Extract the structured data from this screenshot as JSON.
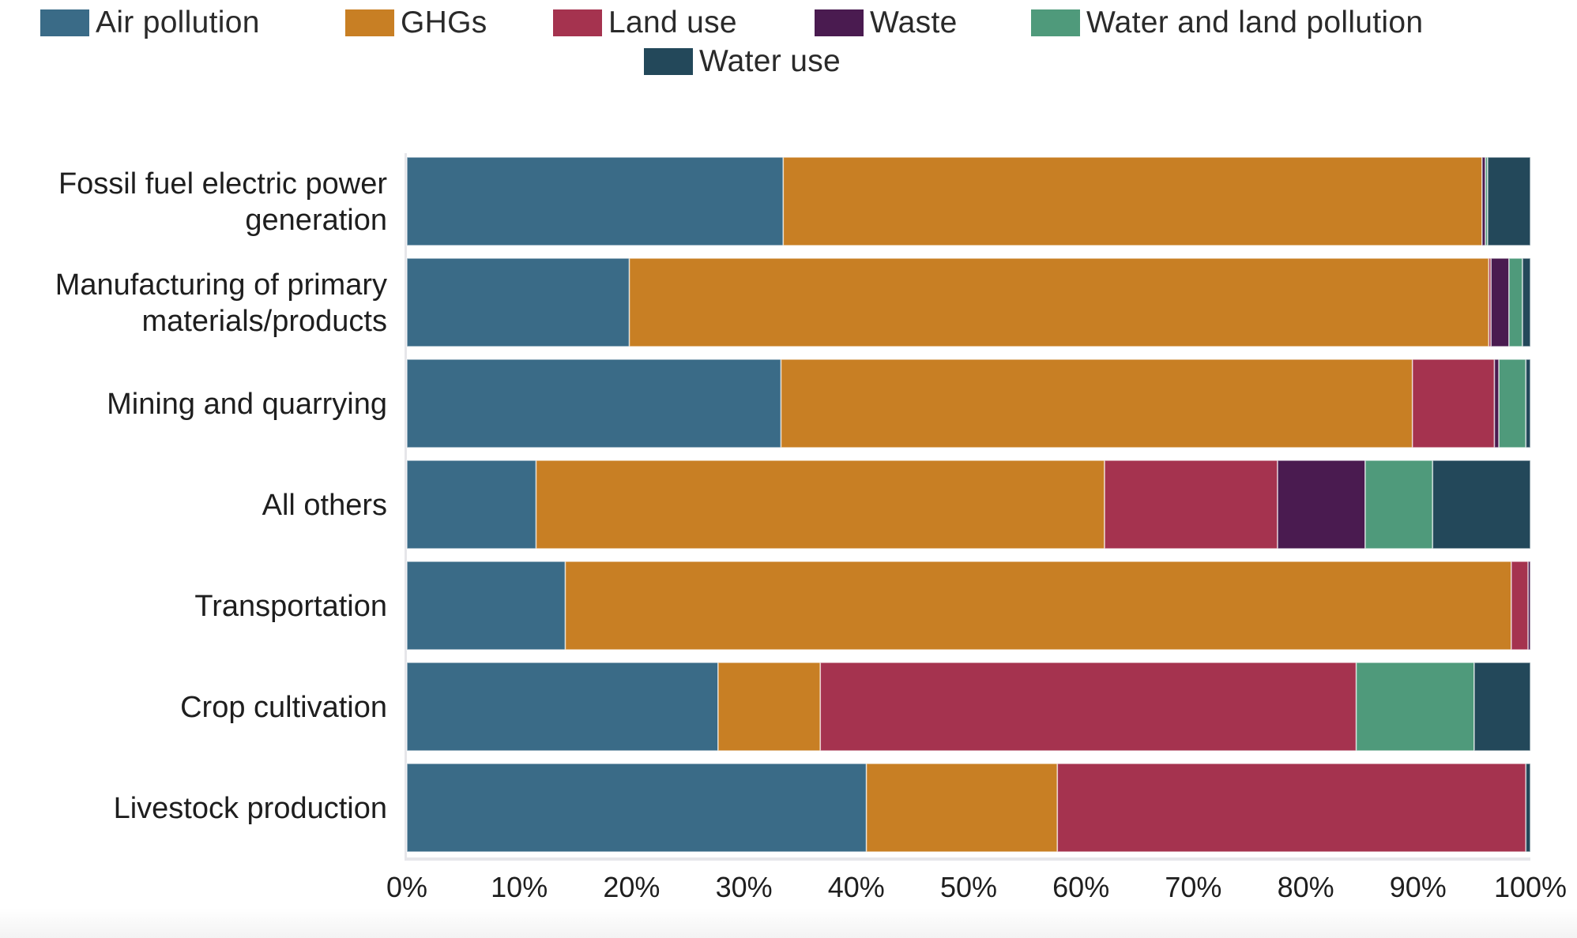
{
  "chart_data": {
    "type": "bar",
    "orientation": "horizontal",
    "stacked": true,
    "normalized": true,
    "title": "",
    "xlabel": "",
    "ylabel": "",
    "xlim": [
      0,
      100
    ],
    "x_tick_labels": [
      "0%",
      "10%",
      "20%",
      "30%",
      "40%",
      "50%",
      "60%",
      "70%",
      "80%",
      "90%",
      "100%"
    ],
    "grid": false,
    "legend_position": "top",
    "categories": [
      "Fossil fuel electric power generation",
      "Manufacturing of primary materials/products",
      "Mining and quarrying",
      "All others",
      "Transportation",
      "Crop cultivation",
      "Livestock production"
    ],
    "category_label_lines": [
      [
        "Fossil fuel electric power",
        "generation"
      ],
      [
        "Manufacturing of primary",
        "materials/products"
      ],
      [
        "Mining and quarrying"
      ],
      [
        "All others"
      ],
      [
        "Transportation"
      ],
      [
        "Crop cultivation"
      ],
      [
        "Livestock production"
      ]
    ],
    "series": [
      {
        "name": "Air pollution",
        "color": "#3a6b87",
        "values": [
          33.5,
          19.8,
          33.3,
          11.5,
          14.1,
          27.7,
          40.9
        ]
      },
      {
        "name": "GHGs",
        "color": "#c87f24",
        "values": [
          62.2,
          76.5,
          56.2,
          50.6,
          84.2,
          9.1,
          17.0
        ]
      },
      {
        "name": "Land use",
        "color": "#a5334f",
        "values": [
          0.0,
          0.2,
          7.3,
          15.4,
          1.5,
          47.7,
          41.7
        ]
      },
      {
        "name": "Waste",
        "color": "#4a1b50",
        "values": [
          0.3,
          1.6,
          0.4,
          7.8,
          0.2,
          0.0,
          0.0
        ]
      },
      {
        "name": "Water and land pollution",
        "color": "#4f9a7b",
        "values": [
          0.2,
          1.2,
          2.4,
          6.0,
          0.0,
          10.5,
          0.0
        ]
      },
      {
        "name": "Water use",
        "color": "#23485a",
        "values": [
          3.8,
          0.7,
          0.4,
          8.7,
          0.0,
          5.0,
          0.4
        ]
      }
    ]
  }
}
